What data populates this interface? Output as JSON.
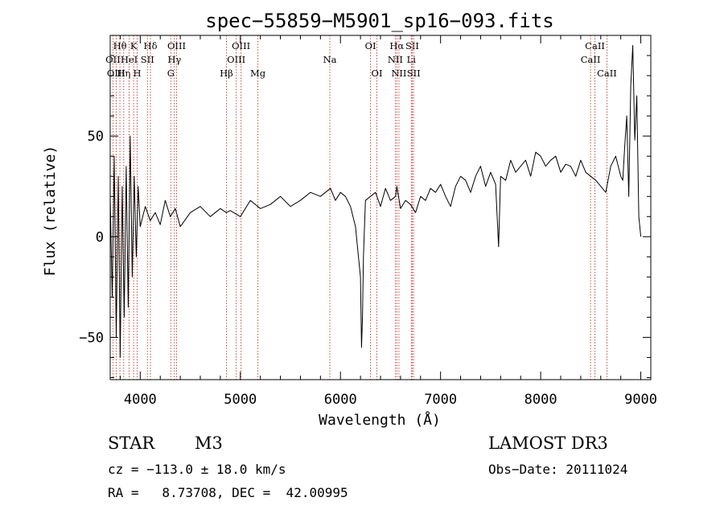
{
  "chart_data": {
    "type": "line",
    "title": "spec−55859−M5901_sp16−093.fits",
    "xlabel": "Wavelength (Å)",
    "ylabel": "Flux (relative)",
    "xlim": [
      3700,
      9100
    ],
    "ylim": [
      -71,
      100
    ],
    "xticks": [
      4000,
      5000,
      6000,
      7000,
      8000,
      9000
    ],
    "yticks": [
      -50,
      0,
      50
    ],
    "ytick_labels": [
      "−50",
      "0",
      "50"
    ],
    "series": [
      {
        "name": "flux",
        "x": [
          3700,
          3720,
          3740,
          3760,
          3780,
          3800,
          3820,
          3840,
          3860,
          3880,
          3900,
          3920,
          3940,
          3960,
          3980,
          4000,
          4050,
          4100,
          4150,
          4200,
          4250,
          4300,
          4350,
          4400,
          4500,
          4600,
          4700,
          4800,
          4860,
          4900,
          5000,
          5100,
          5200,
          5300,
          5400,
          5500,
          5600,
          5700,
          5800,
          5900,
          5950,
          6000,
          6050,
          6100,
          6150,
          6200,
          6210,
          6220,
          6230,
          6240,
          6250,
          6300,
          6350,
          6400,
          6450,
          6500,
          6550,
          6563,
          6600,
          6650,
          6700,
          6750,
          6800,
          6850,
          6900,
          6950,
          7000,
          7050,
          7100,
          7150,
          7200,
          7250,
          7300,
          7350,
          7400,
          7450,
          7500,
          7550,
          7580,
          7600,
          7650,
          7700,
          7750,
          7800,
          7850,
          7900,
          7950,
          8000,
          8050,
          8100,
          8150,
          8200,
          8250,
          8300,
          8350,
          8400,
          8450,
          8500,
          8550,
          8600,
          8650,
          8700,
          8750,
          8800,
          8820,
          8840,
          8860,
          8880,
          8900,
          8920,
          8940,
          8960,
          8980,
          9000
        ],
        "y": [
          20,
          -30,
          40,
          -50,
          30,
          -60,
          25,
          -40,
          35,
          -35,
          50,
          -20,
          30,
          -10,
          25,
          5,
          15,
          8,
          12,
          6,
          18,
          10,
          14,
          5,
          12,
          15,
          10,
          14,
          12,
          13,
          10,
          18,
          14,
          16,
          20,
          15,
          18,
          22,
          20,
          24,
          18,
          22,
          20,
          15,
          5,
          -20,
          -55,
          -40,
          -10,
          5,
          18,
          20,
          22,
          15,
          24,
          18,
          20,
          25,
          14,
          18,
          16,
          12,
          20,
          18,
          24,
          22,
          26,
          20,
          15,
          25,
          30,
          28,
          22,
          30,
          35,
          25,
          32,
          26,
          -5,
          30,
          28,
          38,
          32,
          35,
          38,
          30,
          42,
          40,
          35,
          38,
          40,
          32,
          36,
          35,
          30,
          38,
          32,
          30,
          28,
          25,
          22,
          35,
          40,
          30,
          28,
          45,
          60,
          20,
          75,
          95,
          48,
          70,
          10,
          0
        ]
      }
    ],
    "lines": [
      {
        "name": "Hθ",
        "wavelength": 3797,
        "row": 1
      },
      {
        "name": "OII",
        "wavelength": 3727,
        "row": 2
      },
      {
        "name": "OIII",
        "wavelength": 3760,
        "row": 3
      },
      {
        "name": "Hη",
        "wavelength": 3835,
        "row": 3
      },
      {
        "name": "HeI",
        "wavelength": 3889,
        "row": 2
      },
      {
        "name": "K",
        "wavelength": 3934,
        "row": 1
      },
      {
        "name": "H",
        "wavelength": 3969,
        "row": 3
      },
      {
        "name": "SII",
        "wavelength": 4072,
        "row": 2
      },
      {
        "name": "Hδ",
        "wavelength": 4102,
        "row": 1
      },
      {
        "name": "OIII",
        "wavelength": 4363,
        "row": 1
      },
      {
        "name": "Hγ",
        "wavelength": 4341,
        "row": 2
      },
      {
        "name": "G",
        "wavelength": 4305,
        "row": 3
      },
      {
        "name": "Hβ",
        "wavelength": 4861,
        "row": 3
      },
      {
        "name": "OIII",
        "wavelength": 5007,
        "row": 1
      },
      {
        "name": "OIII",
        "wavelength": 4959,
        "row": 2
      },
      {
        "name": "Mg",
        "wavelength": 5175,
        "row": 3
      },
      {
        "name": "Na",
        "wavelength": 5894,
        "row": 2
      },
      {
        "name": "OI",
        "wavelength": 6300,
        "row": 1
      },
      {
        "name": "OI",
        "wavelength": 6364,
        "row": 3
      },
      {
        "name": "Hα",
        "wavelength": 6563,
        "row": 1
      },
      {
        "name": "NII",
        "wavelength": 6548,
        "row": 2
      },
      {
        "name": "NII",
        "wavelength": 6584,
        "row": 3
      },
      {
        "name": "SII",
        "wavelength": 6717,
        "row": 1
      },
      {
        "name": "Li",
        "wavelength": 6708,
        "row": 2
      },
      {
        "name": "SII",
        "wavelength": 6731,
        "row": 3
      },
      {
        "name": "CaII",
        "wavelength": 8542,
        "row": 1
      },
      {
        "name": "CaII",
        "wavelength": 8498,
        "row": 2
      },
      {
        "name": "CaII",
        "wavelength": 8662,
        "row": 3
      }
    ]
  },
  "info": {
    "object_class": "STAR",
    "subclass": "M3",
    "survey": "LAMOST DR3",
    "cz": "cz = −113.0 ± 18.0 km/s",
    "obs_date": "Obs−Date: 20111024",
    "coords": "RA =   8.73708, DEC =  42.00995"
  }
}
